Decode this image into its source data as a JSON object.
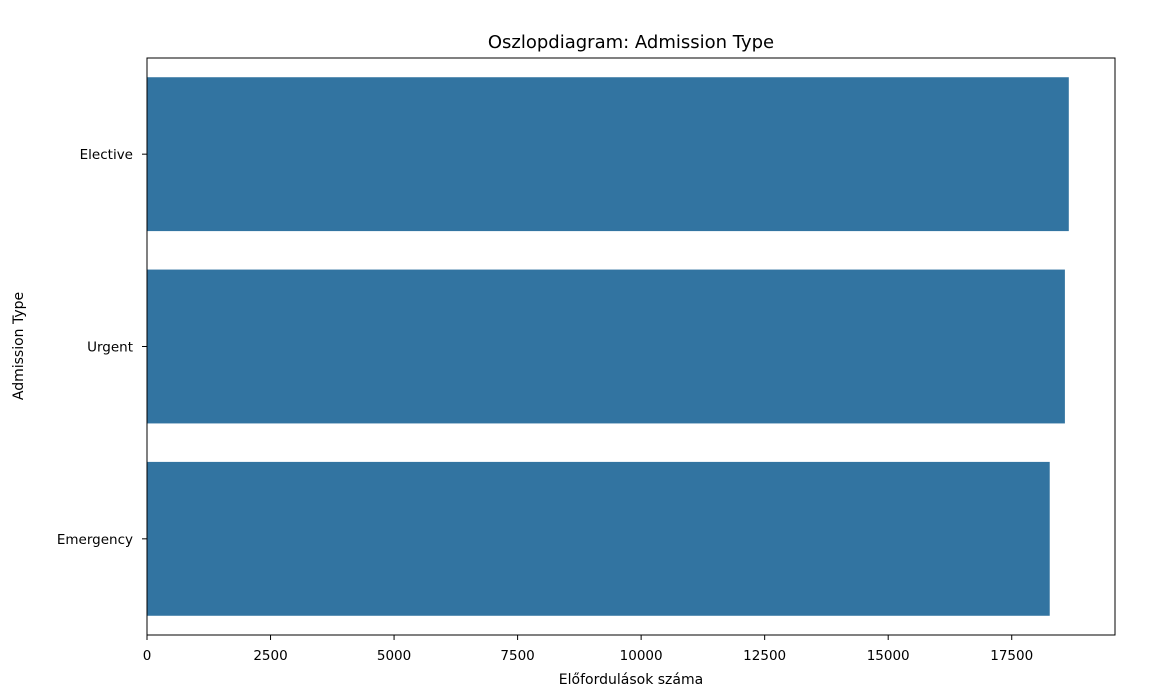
{
  "chart_data": {
    "type": "bar",
    "orientation": "horizontal",
    "title": "Oszlopdiagram: Admission Type",
    "xlabel": "Előfordulások száma",
    "ylabel": "Admission Type",
    "categories": [
      "Elective",
      "Urgent",
      "Emergency"
    ],
    "values": [
      18655,
      18576,
      18269
    ],
    "xlim": [
      0,
      19590
    ],
    "xticks": [
      0,
      2500,
      5000,
      7500,
      10000,
      12500,
      15000,
      17500
    ],
    "grid": false,
    "legend": "none",
    "bar_color": "#3274a1"
  }
}
